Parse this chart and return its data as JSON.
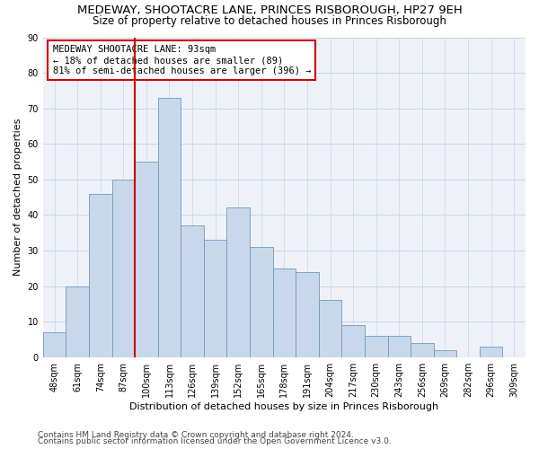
{
  "title": "MEDEWAY, SHOOTACRE LANE, PRINCES RISBOROUGH, HP27 9EH",
  "subtitle": "Size of property relative to detached houses in Princes Risborough",
  "xlabel": "Distribution of detached houses by size in Princes Risborough",
  "ylabel": "Number of detached properties",
  "footer1": "Contains HM Land Registry data © Crown copyright and database right 2024.",
  "footer2": "Contains public sector information licensed under the Open Government Licence v3.0.",
  "categories": [
    "48sqm",
    "61sqm",
    "74sqm",
    "87sqm",
    "100sqm",
    "113sqm",
    "126sqm",
    "139sqm",
    "152sqm",
    "165sqm",
    "178sqm",
    "191sqm",
    "204sqm",
    "217sqm",
    "230sqm",
    "243sqm",
    "256sqm",
    "269sqm",
    "282sqm",
    "296sqm",
    "309sqm"
  ],
  "values": [
    7,
    20,
    46,
    50,
    55,
    73,
    37,
    33,
    42,
    31,
    25,
    24,
    16,
    9,
    6,
    6,
    4,
    2,
    0,
    3,
    0
  ],
  "bar_color": "#c8d8ea",
  "bar_edge_color": "#7099bb",
  "vline_color": "#cc0000",
  "annotation_text": "MEDEWAY SHOOTACRE LANE: 93sqm\n← 18% of detached houses are smaller (89)\n81% of semi-detached houses are larger (396) →",
  "annotation_box_color": "white",
  "annotation_box_edge": "#cc0000",
  "ylim": [
    0,
    90
  ],
  "yticks": [
    0,
    10,
    20,
    30,
    40,
    50,
    60,
    70,
    80,
    90
  ],
  "grid_color": "#c8d4e8",
  "bg_color": "#eef2f8",
  "title_fontsize": 9.5,
  "subtitle_fontsize": 8.5,
  "axis_label_fontsize": 8,
  "tick_fontsize": 7,
  "footer_fontsize": 6.5,
  "annot_fontsize": 7.5
}
